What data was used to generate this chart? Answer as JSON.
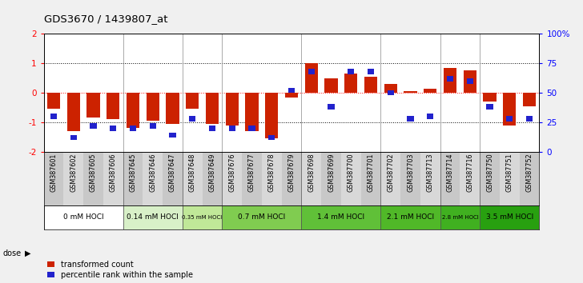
{
  "title": "GDS3670 / 1439807_at",
  "samples": [
    "GSM387601",
    "GSM387602",
    "GSM387605",
    "GSM387606",
    "GSM387645",
    "GSM387646",
    "GSM387647",
    "GSM387648",
    "GSM387649",
    "GSM387676",
    "GSM387677",
    "GSM387678",
    "GSM387679",
    "GSM387698",
    "GSM387699",
    "GSM387700",
    "GSM387701",
    "GSM387702",
    "GSM387703",
    "GSM387713",
    "GSM387714",
    "GSM387716",
    "GSM387750",
    "GSM387751",
    "GSM387752"
  ],
  "red_values": [
    -0.55,
    -1.3,
    -0.85,
    -0.9,
    -1.2,
    -0.95,
    -1.05,
    -0.55,
    -1.05,
    -1.1,
    -1.3,
    -1.55,
    -0.15,
    1.0,
    0.5,
    0.65,
    0.55,
    0.3,
    0.05,
    0.15,
    0.85,
    0.75,
    -0.3,
    -1.1,
    -0.45
  ],
  "blue_values_pct": [
    30,
    12,
    22,
    20,
    20,
    22,
    14,
    28,
    20,
    20,
    20,
    12,
    52,
    68,
    38,
    68,
    68,
    50,
    28,
    30,
    62,
    60,
    38,
    28,
    28
  ],
  "dose_groups": [
    {
      "label": "0 mM HOCl",
      "start": 0,
      "end": 4
    },
    {
      "label": "0.14 mM HOCl",
      "start": 4,
      "end": 7
    },
    {
      "label": "0.35 mM HOCl",
      "start": 7,
      "end": 9
    },
    {
      "label": "0.7 mM HOCl",
      "start": 9,
      "end": 13
    },
    {
      "label": "1.4 mM HOCl",
      "start": 13,
      "end": 17
    },
    {
      "label": "2.1 mM HOCl",
      "start": 17,
      "end": 20
    },
    {
      "label": "2.8 mM HOCl",
      "start": 20,
      "end": 22
    },
    {
      "label": "3.5 mM HOCl",
      "start": 22,
      "end": 25
    }
  ],
  "dose_colors": [
    "#ffffff",
    "#d8f0c8",
    "#c0e898",
    "#80cc50",
    "#60c038",
    "#50b828",
    "#40b020",
    "#28a010"
  ],
  "ylim": [
    -2,
    2
  ],
  "yticks_left": [
    -2,
    -1,
    0,
    1,
    2
  ],
  "yticks_right_pct": [
    0,
    25,
    50,
    75,
    100
  ],
  "hline_values": [
    -1,
    0,
    1
  ],
  "red_color": "#cc2200",
  "blue_color": "#2222cc",
  "bar_width": 0.65,
  "bg_color": "#f0f0f0",
  "label_area_color": "#d0d0d0"
}
